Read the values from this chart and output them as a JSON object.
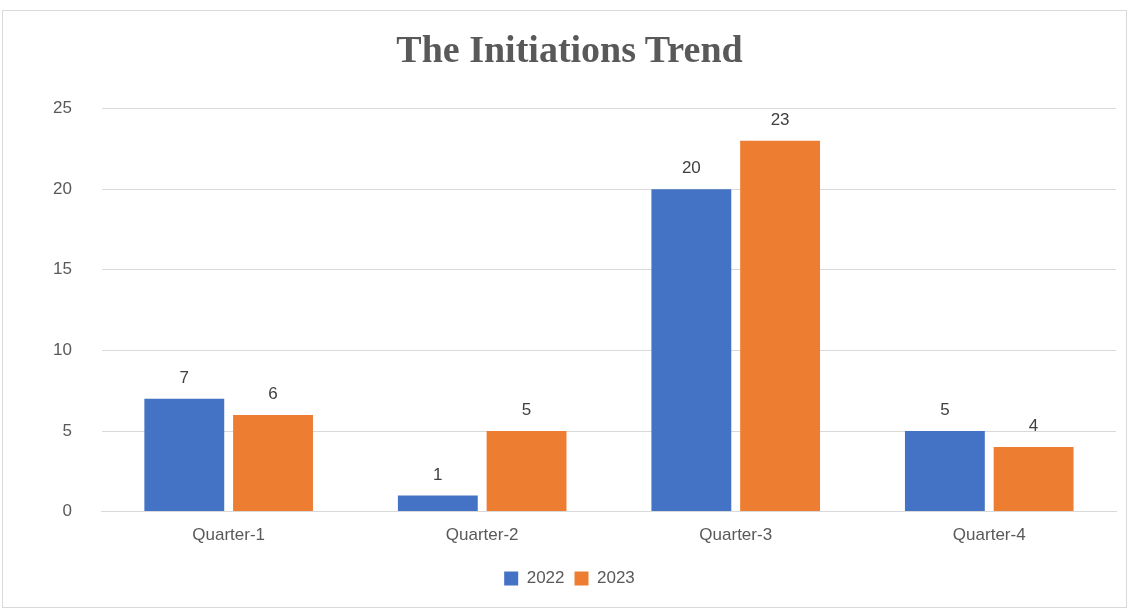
{
  "chart_data": {
    "type": "bar",
    "title": "The Initiations Trend",
    "categories": [
      "Quarter-1",
      "Quarter-2",
      "Quarter-3",
      "Quarter-4"
    ],
    "series": [
      {
        "name": "2022",
        "color": "#4472c4",
        "values": [
          7,
          1,
          20,
          5
        ]
      },
      {
        "name": "2023",
        "color": "#ed7d31",
        "values": [
          6,
          5,
          23,
          4
        ]
      }
    ],
    "ylim": [
      0,
      25
    ],
    "yticks": [
      0,
      5,
      10,
      15,
      20,
      25
    ],
    "grid": "y",
    "legend": "bottom",
    "data_labels": true
  }
}
